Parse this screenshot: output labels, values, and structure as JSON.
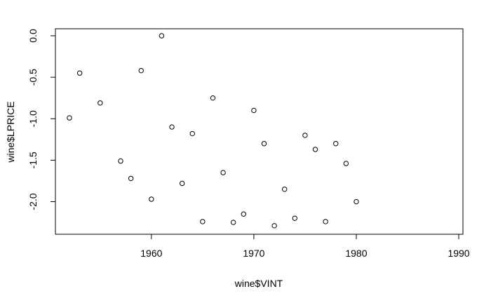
{
  "chart_data": {
    "type": "scatter",
    "title": "",
    "xlabel": "wine$VINT",
    "ylabel": "wine$LPRICE",
    "xlim": [
      1952,
      1990
    ],
    "ylim": [
      -2.3,
      0.0
    ],
    "x_ticks": [
      1960,
      1970,
      1980,
      1990
    ],
    "y_ticks": [
      0.0,
      -0.5,
      -1.0,
      -1.5,
      -2.0
    ],
    "x_tick_labels": [
      "1960",
      "1970",
      "1980",
      "1990"
    ],
    "y_tick_labels": [
      "0.0",
      "-0.5",
      "-1.0",
      "-1.5",
      "-2.0"
    ],
    "grid": false,
    "marker": "open-circle",
    "points": [
      {
        "x": 1952,
        "y": -0.99
      },
      {
        "x": 1953,
        "y": -0.45
      },
      {
        "x": 1955,
        "y": -0.81
      },
      {
        "x": 1957,
        "y": -1.51
      },
      {
        "x": 1958,
        "y": -1.72
      },
      {
        "x": 1959,
        "y": -0.42
      },
      {
        "x": 1960,
        "y": -1.97
      },
      {
        "x": 1961,
        "y": 0.0
      },
      {
        "x": 1962,
        "y": -1.1
      },
      {
        "x": 1963,
        "y": -1.78
      },
      {
        "x": 1964,
        "y": -1.18
      },
      {
        "x": 1965,
        "y": -2.24
      },
      {
        "x": 1966,
        "y": -0.75
      },
      {
        "x": 1967,
        "y": -1.65
      },
      {
        "x": 1968,
        "y": -2.25
      },
      {
        "x": 1969,
        "y": -2.15
      },
      {
        "x": 1970,
        "y": -0.9
      },
      {
        "x": 1971,
        "y": -1.3
      },
      {
        "x": 1972,
        "y": -2.29
      },
      {
        "x": 1973,
        "y": -1.85
      },
      {
        "x": 1974,
        "y": -2.2
      },
      {
        "x": 1975,
        "y": -1.2
      },
      {
        "x": 1976,
        "y": -1.37
      },
      {
        "x": 1977,
        "y": -2.24
      },
      {
        "x": 1978,
        "y": -1.3
      },
      {
        "x": 1979,
        "y": -1.54
      },
      {
        "x": 1980,
        "y": -2.0
      }
    ]
  }
}
